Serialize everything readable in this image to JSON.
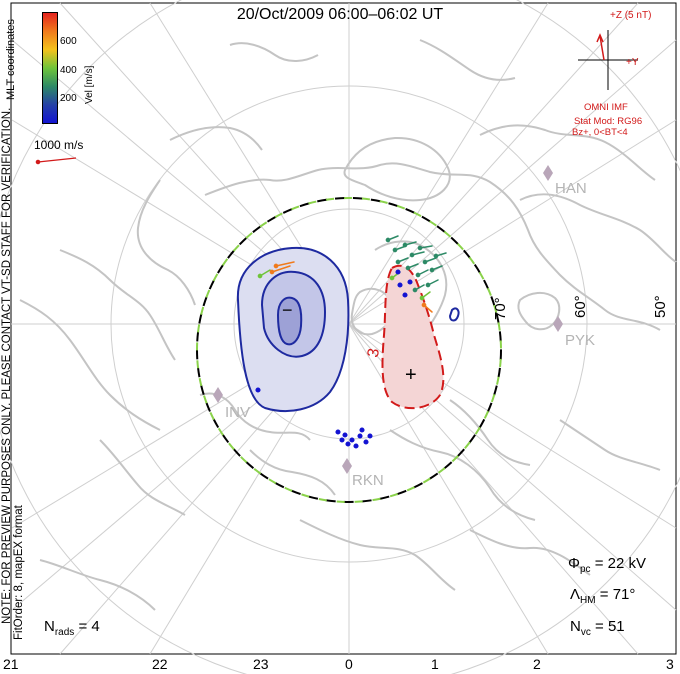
{
  "title": "20/Oct/2009 06:00–06:02 UT",
  "colorbar": {
    "label": "Vel [m/s]",
    "ticks": [
      "600",
      "400",
      "200"
    ],
    "colors": [
      "#e4231e",
      "#f07a1c",
      "#f4c21b",
      "#6fc43a",
      "#2d8a66",
      "#2541a6",
      "#1414d2"
    ]
  },
  "side_text": {
    "coords": "MLT coordinates",
    "preview": "NOTE: FOR PREVIEW PURPOSES ONLY. PLEASE CONTACT VT-SD STAFF FOR VERIFICATION.",
    "fitorder": "FitOrder: 8, mapEX format"
  },
  "scale": {
    "label": "1000 m/s"
  },
  "imf": {
    "z_label": "+Z (5 nT)",
    "y_label": "+Y",
    "source": "OMNI IMF",
    "model": "Stat Mod: RG96",
    "cond": "Bz+, 0<BT<4"
  },
  "latitude_labels": [
    "70°",
    "60°",
    "50°"
  ],
  "stations": [
    "HAN",
    "PYK",
    "INV",
    "RKN"
  ],
  "contour_labels": {
    "min_sign": "−",
    "max_sign": "+",
    "value": "3"
  },
  "stats": {
    "phi_sym": "Φ",
    "phi_sub": "pc",
    "phi_val": "= 22 kV",
    "lam_sym": "Λ",
    "lam_sub": "HM",
    "lam_val": "= 71°",
    "nvc_sym": "N",
    "nvc_sub": "vc",
    "nvc_val": "= 51",
    "nrads_sym": "N",
    "nrads_sub": "rads",
    "nrads_val": "= 4"
  },
  "mlt_axis": [
    "21",
    "22",
    "23",
    "0",
    "1",
    "2",
    "3"
  ],
  "colors": {
    "coast": "#c8c8c8",
    "grid": "#c8c8c8",
    "neg_contour": "#1e2aa0",
    "pos_contour": "#d21a1a",
    "neg_fill": "#dadcf0",
    "pos_fill": "#f4d6d6",
    "hm_boundary_a": "#000000",
    "hm_boundary_b": "#8ad24a",
    "text_red": "#d21a1a",
    "station": "#b4a0b4"
  }
}
